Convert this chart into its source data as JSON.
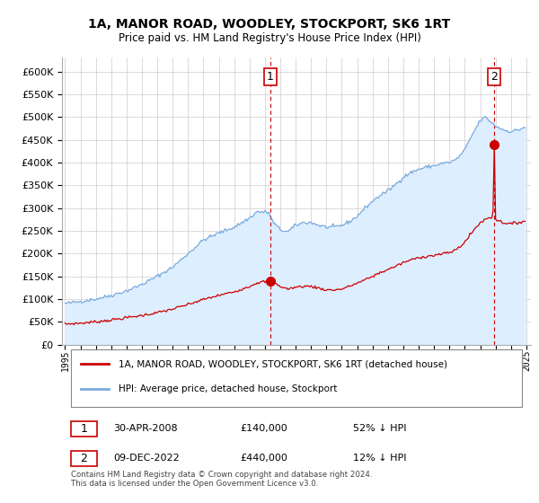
{
  "title": "1A, MANOR ROAD, WOODLEY, STOCKPORT, SK6 1RT",
  "subtitle": "Price paid vs. HM Land Registry's House Price Index (HPI)",
  "ylabel_ticks": [
    0,
    50000,
    100000,
    150000,
    200000,
    250000,
    300000,
    350000,
    400000,
    450000,
    500000,
    550000,
    600000
  ],
  "ylim": [
    0,
    630000
  ],
  "xlim_start": 1994.8,
  "xlim_end": 2025.3,
  "red_line_label": "1A, MANOR ROAD, WOODLEY, STOCKPORT, SK6 1RT (detached house)",
  "blue_line_label": "HPI: Average price, detached house, Stockport",
  "point1_label": "1",
  "point1_date": "30-APR-2008",
  "point1_price": "£140,000",
  "point1_pct": "52% ↓ HPI",
  "point1_year": 2008.33,
  "point1_value": 140000,
  "point2_label": "2",
  "point2_date": "09-DEC-2022",
  "point2_price": "£440,000",
  "point2_pct": "12% ↓ HPI",
  "point2_year": 2022.92,
  "point2_value": 440000,
  "red_line_color": "#cc0000",
  "blue_line_color": "#7aaadd",
  "blue_fill_color": "#ddeeff",
  "vline_color": "#cc0000",
  "grid_color": "#cccccc",
  "background_color": "#ffffff",
  "footnote": "Contains HM Land Registry data © Crown copyright and database right 2024.\nThis data is licensed under the Open Government Licence v3.0."
}
